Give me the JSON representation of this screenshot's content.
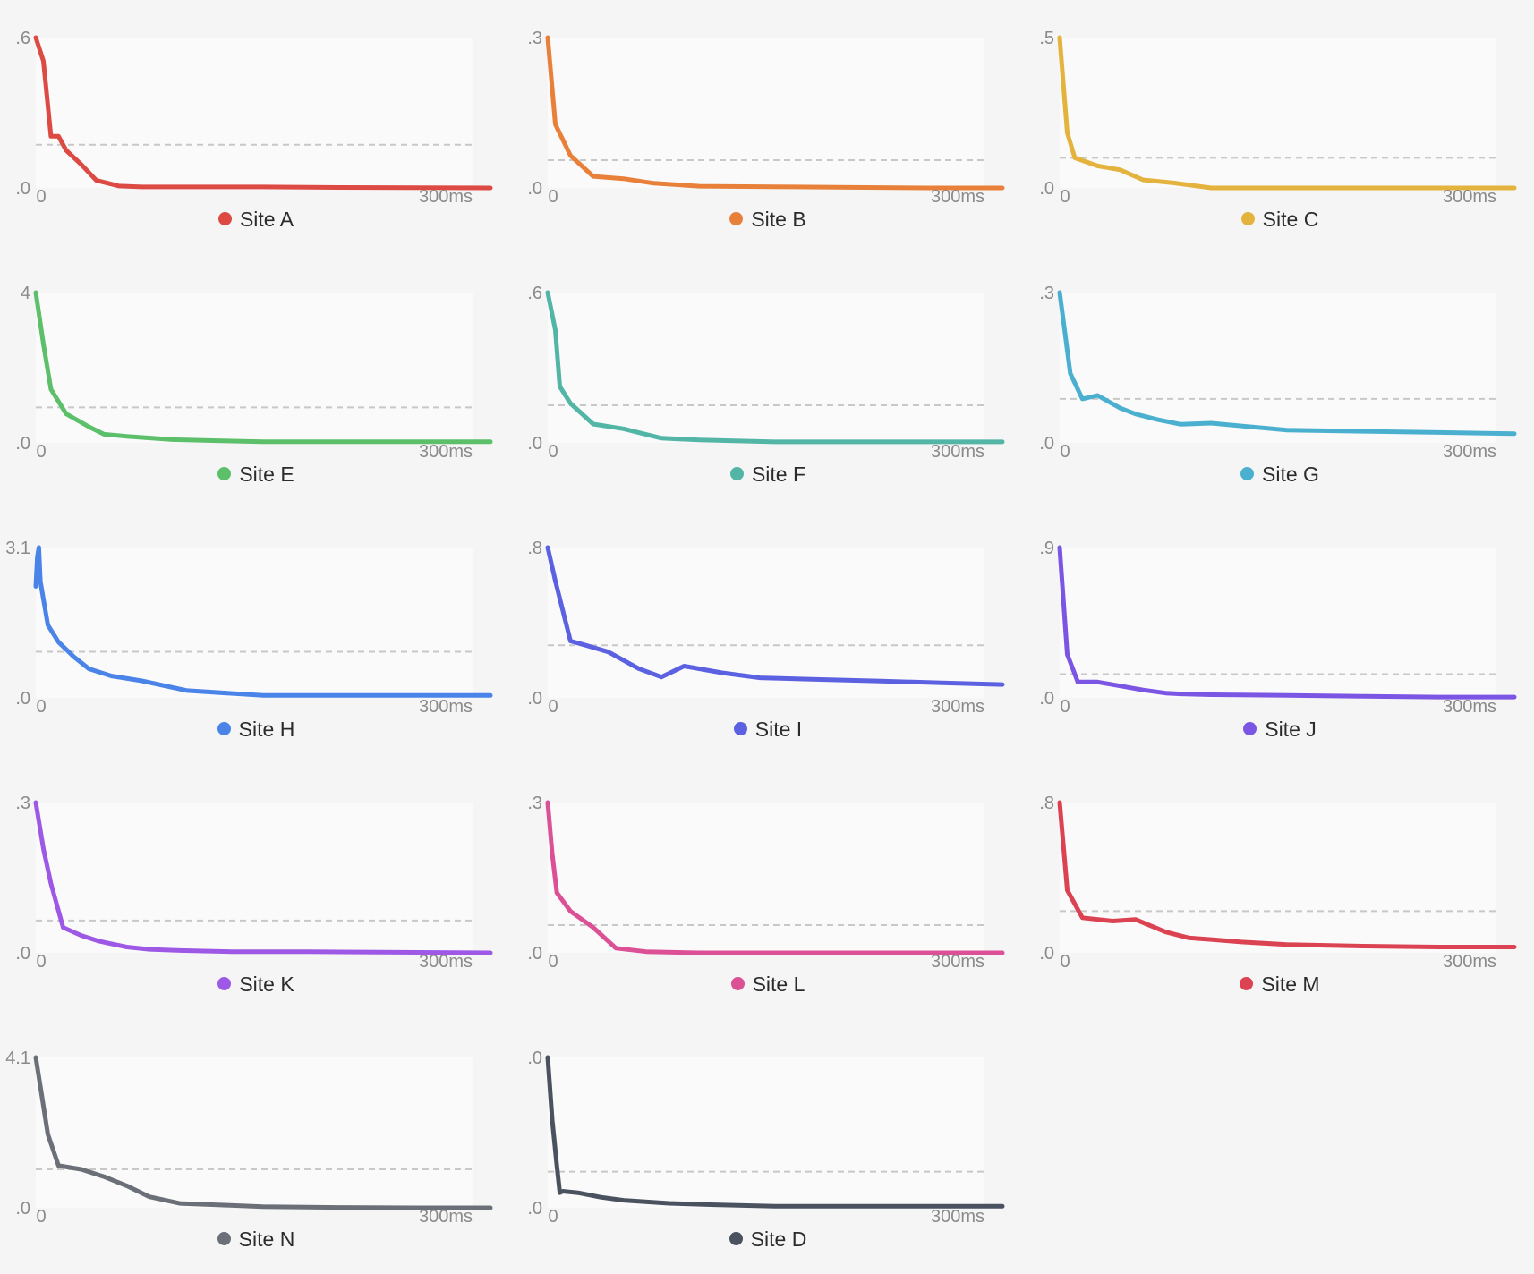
{
  "chart_data": [
    {
      "type": "line",
      "name": "Site A",
      "color": "#dc4a43",
      "ylim": [
        0,
        1.6
      ],
      "y_tick_top": ".6",
      "y_tick_bottom": ".0",
      "x_tick_start": "0",
      "x_tick_end": "300ms",
      "threshold": 0.46,
      "x": [
        0,
        5,
        10,
        15,
        20,
        30,
        40,
        55,
        70,
        100,
        150,
        200,
        250,
        300
      ],
      "y": [
        1.6,
        1.35,
        0.55,
        0.55,
        0.4,
        0.25,
        0.08,
        0.02,
        0.01,
        0.01,
        0.01,
        0.005,
        0.002,
        0.0
      ]
    },
    {
      "type": "line",
      "name": "Site B",
      "color": "#e8803a",
      "ylim": [
        0,
        1.3
      ],
      "y_tick_top": ".3",
      "y_tick_bottom": ".0",
      "x_tick_start": "0",
      "x_tick_end": "300ms",
      "threshold": 0.24,
      "x": [
        0,
        5,
        15,
        30,
        50,
        70,
        100,
        150,
        200,
        250,
        300
      ],
      "y": [
        1.3,
        0.55,
        0.28,
        0.1,
        0.08,
        0.04,
        0.015,
        0.01,
        0.005,
        0.0,
        0.0
      ]
    },
    {
      "type": "line",
      "name": "Site C",
      "color": "#e4b33d",
      "ylim": [
        0,
        1.5
      ],
      "y_tick_top": ".5",
      "y_tick_bottom": ".0",
      "x_tick_start": "0",
      "x_tick_end": "300ms",
      "threshold": 0.3,
      "x": [
        0,
        5,
        10,
        25,
        40,
        55,
        75,
        100,
        150,
        200,
        300
      ],
      "y": [
        1.5,
        0.55,
        0.3,
        0.22,
        0.18,
        0.08,
        0.05,
        0.0,
        0.0,
        0.0,
        0.0
      ]
    },
    {
      "type": "line",
      "name": "Site E",
      "color": "#5cbf6a",
      "ylim": [
        0,
        1.4
      ],
      "y_tick_top": "4",
      "y_tick_bottom": ".0",
      "x_tick_start": "0",
      "x_tick_end": "300ms",
      "threshold": 0.33,
      "x": [
        0,
        5,
        10,
        20,
        35,
        45,
        60,
        90,
        120,
        150,
        200,
        250,
        300
      ],
      "y": [
        1.4,
        0.92,
        0.5,
        0.27,
        0.15,
        0.08,
        0.06,
        0.03,
        0.02,
        0.01,
        0.01,
        0.01,
        0.01
      ]
    },
    {
      "type": "line",
      "name": "Site F",
      "color": "#52b5a5",
      "ylim": [
        0,
        1.6
      ],
      "y_tick_top": ".6",
      "y_tick_bottom": ".0",
      "x_tick_start": "0",
      "x_tick_end": "300ms",
      "threshold": 0.4,
      "x": [
        0,
        5,
        8,
        15,
        30,
        50,
        75,
        100,
        150,
        200,
        250,
        300
      ],
      "y": [
        1.6,
        1.2,
        0.6,
        0.42,
        0.2,
        0.15,
        0.05,
        0.03,
        0.01,
        0.01,
        0.01,
        0.01
      ]
    },
    {
      "type": "line",
      "name": "Site G",
      "color": "#4bb0cf",
      "ylim": [
        0,
        1.3
      ],
      "y_tick_top": ".3",
      "y_tick_bottom": ".0",
      "x_tick_start": "0",
      "x_tick_end": "300ms",
      "threshold": 0.38,
      "x": [
        0,
        7,
        15,
        25,
        40,
        50,
        65,
        80,
        100,
        150,
        200,
        250,
        300
      ],
      "y": [
        1.3,
        0.6,
        0.38,
        0.41,
        0.3,
        0.25,
        0.2,
        0.16,
        0.17,
        0.11,
        0.1,
        0.09,
        0.08
      ]
    },
    {
      "type": "line",
      "name": "Site H",
      "color": "#4a84e8",
      "ylim": [
        0,
        3.1
      ],
      "y_tick_top": "3.1",
      "y_tick_bottom": ".0",
      "x_tick_start": "0",
      "x_tick_end": "300ms",
      "threshold": 0.95,
      "x": [
        0,
        1,
        2,
        3,
        8,
        15,
        25,
        35,
        50,
        70,
        100,
        150,
        200,
        250,
        300
      ],
      "y": [
        2.3,
        2.9,
        3.1,
        2.4,
        1.5,
        1.15,
        0.85,
        0.6,
        0.45,
        0.35,
        0.15,
        0.05,
        0.05,
        0.05,
        0.05
      ]
    },
    {
      "type": "line",
      "name": "Site I",
      "color": "#5b61e0",
      "ylim": [
        0,
        1.8
      ],
      "y_tick_top": ".8",
      "y_tick_bottom": ".0",
      "x_tick_start": "0",
      "x_tick_end": "300ms",
      "threshold": 0.63,
      "x": [
        0,
        5,
        15,
        25,
        40,
        60,
        75,
        90,
        115,
        140,
        180,
        220,
        260,
        300
      ],
      "y": [
        1.8,
        1.4,
        0.68,
        0.63,
        0.55,
        0.35,
        0.25,
        0.38,
        0.3,
        0.24,
        0.22,
        0.2,
        0.18,
        0.16
      ]
    },
    {
      "type": "line",
      "name": "Site J",
      "color": "#7b55e3",
      "ylim": [
        0,
        1.9
      ],
      "y_tick_top": ".9",
      "y_tick_bottom": ".0",
      "x_tick_start": "0",
      "x_tick_end": "300ms",
      "threshold": 0.3,
      "x": [
        0,
        5,
        12,
        25,
        40,
        55,
        70,
        80,
        100,
        150,
        200,
        250,
        300
      ],
      "y": [
        1.9,
        0.55,
        0.2,
        0.2,
        0.15,
        0.1,
        0.06,
        0.05,
        0.04,
        0.03,
        0.02,
        0.01,
        0.01
      ]
    },
    {
      "type": "line",
      "name": "Site K",
      "color": "#9d58e5",
      "ylim": [
        0,
        1.3
      ],
      "y_tick_top": ".3",
      "y_tick_bottom": ".0",
      "x_tick_start": "0",
      "x_tick_end": "300ms",
      "threshold": 0.28,
      "x": [
        0,
        5,
        10,
        18,
        30,
        42,
        60,
        75,
        95,
        130,
        180,
        240,
        300
      ],
      "y": [
        1.3,
        0.9,
        0.6,
        0.22,
        0.15,
        0.1,
        0.05,
        0.03,
        0.02,
        0.01,
        0.01,
        0.005,
        0.0
      ]
    },
    {
      "type": "line",
      "name": "Site L",
      "color": "#dc5096",
      "ylim": [
        0,
        1.3
      ],
      "y_tick_top": ".3",
      "y_tick_bottom": ".0",
      "x_tick_start": "0",
      "x_tick_end": "300ms",
      "threshold": 0.24,
      "x": [
        0,
        3,
        6,
        15,
        30,
        45,
        65,
        100,
        140,
        200,
        250,
        300
      ],
      "y": [
        1.3,
        0.85,
        0.52,
        0.36,
        0.22,
        0.04,
        0.01,
        0.0,
        0.0,
        0.0,
        0.0,
        0.0
      ]
    },
    {
      "type": "line",
      "name": "Site M",
      "color": "#dc4352",
      "ylim": [
        0,
        1.8
      ],
      "y_tick_top": ".8",
      "y_tick_bottom": ".0",
      "x_tick_start": "0",
      "x_tick_end": "300ms",
      "threshold": 0.5,
      "x": [
        0,
        5,
        15,
        35,
        50,
        70,
        85,
        100,
        120,
        150,
        200,
        250,
        300
      ],
      "y": [
        1.8,
        0.75,
        0.42,
        0.38,
        0.4,
        0.25,
        0.18,
        0.16,
        0.13,
        0.1,
        0.08,
        0.07,
        0.07
      ]
    },
    {
      "type": "line",
      "name": "Site N",
      "color": "#6b7078",
      "ylim": [
        0,
        4.1
      ],
      "y_tick_top": "4.1",
      "y_tick_bottom": ".0",
      "x_tick_start": "0",
      "x_tick_end": "300ms",
      "threshold": 1.05,
      "x": [
        0,
        8,
        15,
        30,
        45,
        60,
        75,
        95,
        120,
        150,
        200,
        250,
        300
      ],
      "y": [
        4.1,
        2.0,
        1.15,
        1.05,
        0.85,
        0.6,
        0.3,
        0.12,
        0.08,
        0.03,
        0.01,
        0.0,
        0.0
      ]
    },
    {
      "type": "line",
      "name": "Site D",
      "color": "#4a5260",
      "ylim": [
        0,
        1.0
      ],
      "y_tick_top": ".0",
      "y_tick_bottom": ".0",
      "x_tick_start": "0",
      "x_tick_end": "300ms",
      "threshold": 0.24,
      "x": [
        0,
        3,
        6,
        8,
        10,
        20,
        35,
        50,
        80,
        110,
        150,
        200,
        250,
        300
      ],
      "y": [
        1.0,
        0.58,
        0.28,
        0.1,
        0.11,
        0.1,
        0.07,
        0.05,
        0.03,
        0.02,
        0.01,
        0.01,
        0.01,
        0.01
      ]
    }
  ]
}
